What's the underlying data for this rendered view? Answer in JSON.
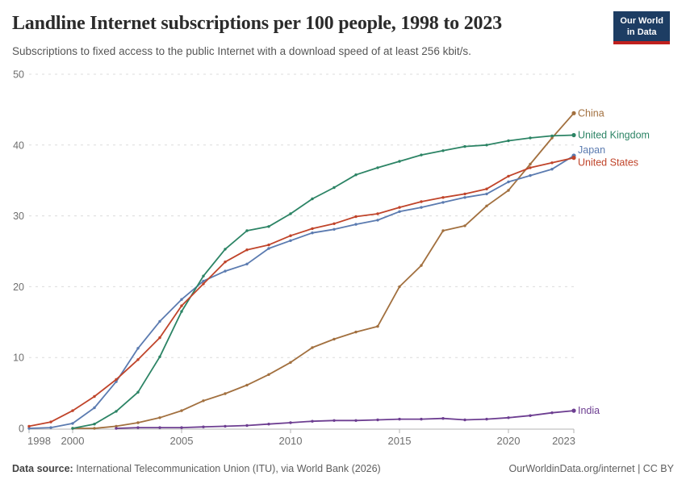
{
  "header": {
    "title": "Landline Internet subscriptions per 100 people, 1998 to 2023",
    "subtitle": "Subscriptions to fixed access to the public Internet with a download speed of at least 256 kbit/s.",
    "logo_line1": "Our World",
    "logo_line2": "in Data"
  },
  "footer": {
    "datasource_label": "Data source:",
    "datasource_text": "International Telecommunication Union (ITU), via World Bank (2026)",
    "link": "OurWorldinData.org/internet | CC BY"
  },
  "colors": {
    "grid": "#dcdcdc",
    "axis": "#b3b3b3",
    "tick_label": "#6e6e6e",
    "logo_bg": "#1d3d63",
    "logo_stripe": "#c0201e"
  },
  "chart_data": {
    "type": "line",
    "title": "Landline Internet subscriptions per 100 people, 1998 to 2023",
    "xlabel": "",
    "ylabel": "",
    "xlim": [
      1998,
      2023
    ],
    "ylim": [
      0,
      50
    ],
    "x_ticks": [
      1998,
      2000,
      2005,
      2010,
      2015,
      2020,
      2023
    ],
    "y_ticks": [
      0,
      10,
      20,
      30,
      40,
      50
    ],
    "grid": "horizontal dashed",
    "legend_position": "labels at right end of each line",
    "series": [
      {
        "name": "China",
        "color": "#A2703F",
        "start_year": 2000,
        "values": [
          0.0,
          0.0,
          0.3,
          0.8,
          1.5,
          2.5,
          3.9,
          4.9,
          6.1,
          7.6,
          9.3,
          11.4,
          12.6,
          13.6,
          14.4,
          20.0,
          23.0,
          27.9,
          28.6,
          31.4,
          33.6,
          37.3,
          41.0,
          44.5
        ],
        "label_dy": 0
      },
      {
        "name": "India",
        "color": "#6D3E91",
        "start_year": 2002,
        "values": [
          0.0,
          0.1,
          0.1,
          0.1,
          0.2,
          0.3,
          0.4,
          0.6,
          0.8,
          1.0,
          1.1,
          1.1,
          1.2,
          1.3,
          1.3,
          1.4,
          1.2,
          1.3,
          1.5,
          1.8,
          2.2,
          2.5
        ],
        "label_dy": 0
      },
      {
        "name": "Japan",
        "color": "#5B7BB0",
        "start_year": 1998,
        "values": [
          0.0,
          0.1,
          0.7,
          2.9,
          6.6,
          11.3,
          15.1,
          18.2,
          20.8,
          22.2,
          23.2,
          25.4,
          26.5,
          27.6,
          28.1,
          28.8,
          29.4,
          30.6,
          31.2,
          31.9,
          32.6,
          33.1,
          34.8,
          35.7,
          36.6,
          38.5
        ],
        "label_dy": -7
      },
      {
        "name": "United Kingdom",
        "color": "#2C8465",
        "start_year": 2000,
        "values": [
          0.0,
          0.6,
          2.4,
          5.1,
          10.1,
          16.5,
          21.5,
          25.3,
          27.9,
          28.5,
          30.3,
          32.4,
          34.0,
          35.8,
          36.8,
          37.7,
          38.6,
          39.2,
          39.8,
          40.0,
          40.6,
          41.0,
          41.3,
          41.4
        ],
        "label_dy": 0
      },
      {
        "name": "United States",
        "color": "#C0442A",
        "start_year": 1998,
        "values": [
          0.3,
          0.9,
          2.5,
          4.5,
          6.9,
          9.7,
          12.8,
          17.3,
          20.4,
          23.5,
          25.2,
          25.9,
          27.2,
          28.2,
          28.9,
          29.9,
          30.3,
          31.2,
          32.0,
          32.6,
          33.1,
          33.8,
          35.6,
          36.8,
          37.5,
          38.2
        ],
        "label_dy": 6
      }
    ]
  }
}
